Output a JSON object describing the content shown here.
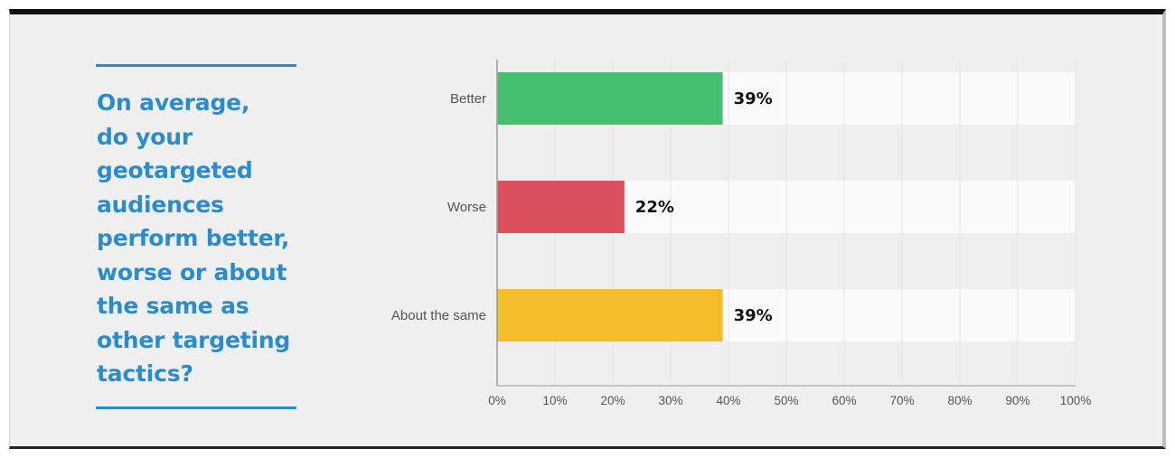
{
  "question": {
    "text": "On average,\ndo your\ngeotargeted\naudiences\nperform better,\nworse or about\nthe same as\nother targeting\ntactics?"
  },
  "chart_data": {
    "type": "bar",
    "orientation": "horizontal",
    "categories": [
      "Better",
      "Worse",
      "About the same"
    ],
    "values": [
      39,
      22,
      39
    ],
    "data_labels": [
      "39%",
      "22%",
      "39%"
    ],
    "colors": [
      "#44c070",
      "#dc4f5c",
      "#f5bc2a"
    ],
    "track_color": "#fbfbfb",
    "xlim": [
      0,
      100
    ],
    "xticks": [
      0,
      10,
      20,
      30,
      40,
      50,
      60,
      70,
      80,
      90,
      100
    ],
    "xtick_labels": [
      "0%",
      "10%",
      "20%",
      "30%",
      "40%",
      "50%",
      "60%",
      "70%",
      "80%",
      "90%",
      "100%"
    ],
    "grid": true
  }
}
